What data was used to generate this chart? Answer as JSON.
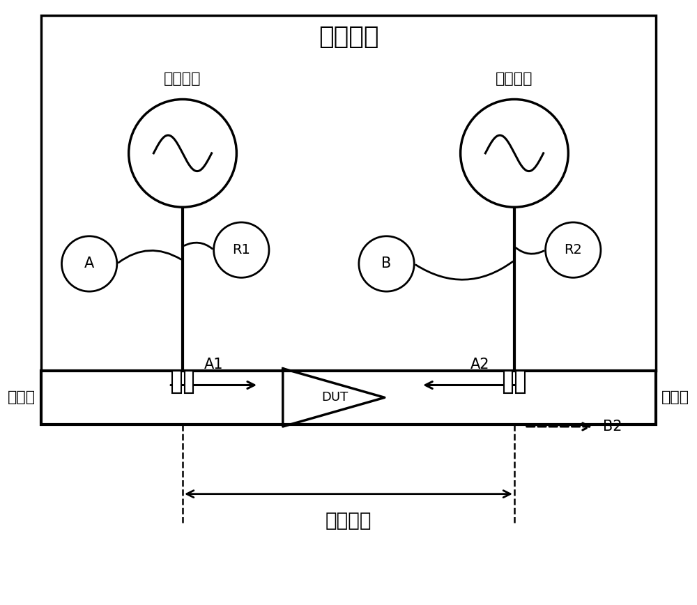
{
  "title": "测试件器",
  "label_sig1": "信号源一",
  "label_sig2": "信号源二",
  "label_port1": "端口一",
  "label_port2": "端口二",
  "label_R1": "R1",
  "label_R2": "R2",
  "label_A": "A",
  "label_B": "B",
  "label_A1": "A1",
  "label_A2": "A2",
  "label_B2": "B2",
  "label_DUT": "DUT",
  "label_calib": "校准平面",
  "bg_color": "#ffffff",
  "line_color": "#000000",
  "title_fontsize": 26,
  "label_fontsize": 16,
  "small_fontsize": 14,
  "calib_fontsize": 20
}
